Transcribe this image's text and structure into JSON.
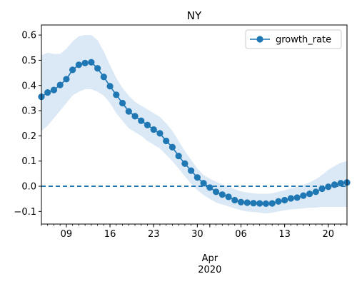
{
  "chart_data": {
    "type": "line",
    "title": "NY",
    "xlabel": "",
    "ylabel": "",
    "x_start": "2020-03-05",
    "x_end": "2020-04-23",
    "ylim": [
      -0.15,
      0.64
    ],
    "yticks": [
      -0.1,
      0.0,
      0.1,
      0.2,
      0.3,
      0.4,
      0.5,
      0.6
    ],
    "ytick_labels": [
      "−0.1",
      "0.0",
      "0.1",
      "0.2",
      "0.3",
      "0.4",
      "0.5",
      "0.6"
    ],
    "xticks": [
      "2020-03-09",
      "2020-03-16",
      "2020-03-23",
      "2020-03-30",
      "2020-04-06",
      "2020-04-13",
      "2020-04-20"
    ],
    "xtick_labels": [
      "09",
      "16",
      "23",
      "30",
      "06",
      "13",
      "20"
    ],
    "x_month_label": "Apr",
    "x_year_label": "2020",
    "x_month_position": "2020-04-01",
    "reference_line": 0.0,
    "legend_position": "top-right",
    "grid": false,
    "series": [
      {
        "name": "growth_rate",
        "color": "#1f77b4",
        "band_color": "#dbe8f5",
        "x": [
          "2020-03-05",
          "2020-03-06",
          "2020-03-07",
          "2020-03-08",
          "2020-03-09",
          "2020-03-10",
          "2020-03-11",
          "2020-03-12",
          "2020-03-13",
          "2020-03-14",
          "2020-03-15",
          "2020-03-16",
          "2020-03-17",
          "2020-03-18",
          "2020-03-19",
          "2020-03-20",
          "2020-03-21",
          "2020-03-22",
          "2020-03-23",
          "2020-03-24",
          "2020-03-25",
          "2020-03-26",
          "2020-03-27",
          "2020-03-28",
          "2020-03-29",
          "2020-03-30",
          "2020-03-31",
          "2020-04-01",
          "2020-04-02",
          "2020-04-03",
          "2020-04-04",
          "2020-04-05",
          "2020-04-06",
          "2020-04-07",
          "2020-04-08",
          "2020-04-09",
          "2020-04-10",
          "2020-04-11",
          "2020-04-12",
          "2020-04-13",
          "2020-04-14",
          "2020-04-15",
          "2020-04-16",
          "2020-04-17",
          "2020-04-18",
          "2020-04-19",
          "2020-04-20",
          "2020-04-21",
          "2020-04-22",
          "2020-04-23"
        ],
        "values": [
          0.355,
          0.372,
          0.382,
          0.402,
          0.425,
          0.462,
          0.482,
          0.489,
          0.492,
          0.468,
          0.434,
          0.397,
          0.363,
          0.33,
          0.297,
          0.278,
          0.26,
          0.243,
          0.225,
          0.21,
          0.18,
          0.155,
          0.12,
          0.09,
          0.062,
          0.035,
          0.012,
          -0.005,
          -0.022,
          -0.033,
          -0.042,
          -0.055,
          -0.063,
          -0.065,
          -0.067,
          -0.068,
          -0.069,
          -0.068,
          -0.06,
          -0.055,
          -0.048,
          -0.045,
          -0.037,
          -0.03,
          -0.022,
          -0.01,
          -0.002,
          0.006,
          0.012,
          0.015
        ],
        "lower": [
          0.22,
          0.24,
          0.27,
          0.3,
          0.33,
          0.36,
          0.375,
          0.385,
          0.385,
          0.375,
          0.36,
          0.33,
          0.29,
          0.26,
          0.23,
          0.215,
          0.2,
          0.18,
          0.165,
          0.15,
          0.125,
          0.1,
          0.07,
          0.04,
          0.01,
          -0.015,
          -0.035,
          -0.05,
          -0.065,
          -0.072,
          -0.08,
          -0.088,
          -0.095,
          -0.1,
          -0.102,
          -0.105,
          -0.108,
          -0.105,
          -0.1,
          -0.095,
          -0.092,
          -0.09,
          -0.088,
          -0.085,
          -0.085,
          -0.082,
          -0.082,
          -0.082,
          -0.082,
          -0.082
        ],
        "upper": [
          0.52,
          0.53,
          0.525,
          0.525,
          0.545,
          0.575,
          0.595,
          0.6,
          0.6,
          0.58,
          0.535,
          0.48,
          0.43,
          0.39,
          0.36,
          0.335,
          0.32,
          0.305,
          0.29,
          0.275,
          0.25,
          0.22,
          0.18,
          0.14,
          0.105,
          0.07,
          0.045,
          0.03,
          0.018,
          0.008,
          -0.002,
          -0.012,
          -0.02,
          -0.025,
          -0.028,
          -0.03,
          -0.03,
          -0.028,
          -0.022,
          -0.016,
          -0.008,
          -0.002,
          0.005,
          0.015,
          0.028,
          0.045,
          0.065,
          0.08,
          0.093,
          0.1
        ]
      }
    ]
  }
}
